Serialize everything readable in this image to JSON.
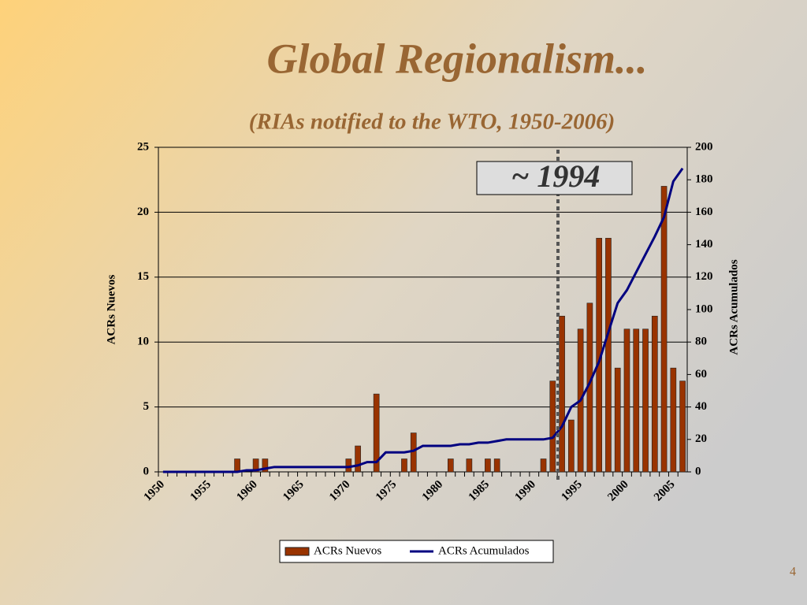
{
  "page_number": "4",
  "chart_data": {
    "type": "bar",
    "title": "Global Regionalism...",
    "subtitle": "(RIAs notified to the WTO, 1950-2006)",
    "y_label": "ACRs Nuevos",
    "y2_label": "ACRs Acumulados",
    "annotation": "~ 1994",
    "x": [
      1950,
      1951,
      1952,
      1953,
      1954,
      1955,
      1956,
      1957,
      1958,
      1959,
      1960,
      1961,
      1962,
      1963,
      1964,
      1965,
      1966,
      1967,
      1968,
      1969,
      1970,
      1971,
      1972,
      1973,
      1974,
      1975,
      1976,
      1977,
      1978,
      1979,
      1980,
      1981,
      1982,
      1983,
      1984,
      1985,
      1986,
      1987,
      1988,
      1989,
      1990,
      1991,
      1992,
      1993,
      1994,
      1995,
      1996,
      1997,
      1998,
      1999,
      2000,
      2001,
      2002,
      2003,
      2004,
      2005,
      2006
    ],
    "xlim": [
      1949.5,
      2006.5
    ],
    "xticks": [
      1950,
      1955,
      1960,
      1965,
      1970,
      1975,
      1980,
      1985,
      1990,
      1995,
      2000,
      2005
    ],
    "ylim": [
      0,
      25
    ],
    "yticks": [
      0,
      5,
      10,
      15,
      20,
      25
    ],
    "y2lim": [
      0,
      200
    ],
    "y2ticks": [
      0,
      20,
      40,
      60,
      80,
      100,
      120,
      140,
      160,
      180,
      200
    ],
    "grid": true,
    "legend": "bottom",
    "series": [
      {
        "name": "ACRs Nuevos",
        "type": "bar",
        "color": "#993300",
        "values": [
          0,
          0,
          0,
          0,
          0,
          0,
          0,
          0,
          1,
          0,
          1,
          1,
          0,
          0,
          0,
          0,
          0,
          0,
          0,
          0,
          1,
          2,
          0,
          6,
          0,
          0,
          1,
          3,
          0,
          0,
          0,
          1,
          0,
          1,
          0,
          1,
          1,
          0,
          0,
          0,
          0,
          1,
          7,
          12,
          4,
          11,
          13,
          18,
          18,
          8,
          11,
          11,
          11,
          12,
          22,
          8,
          7
        ]
      },
      {
        "name": "ACRs Acumulados",
        "type": "line",
        "axis": "y2",
        "color": "#000080",
        "values": [
          0,
          0,
          0,
          0,
          0,
          0,
          0,
          0,
          0,
          1,
          1,
          2,
          3,
          3,
          3,
          3,
          3,
          3,
          3,
          3,
          3,
          4,
          6,
          6,
          12,
          12,
          12,
          13,
          16,
          16,
          16,
          16,
          17,
          17,
          18,
          18,
          19,
          20,
          20,
          20,
          20,
          20,
          21,
          28,
          40,
          44,
          55,
          68,
          86,
          104,
          112,
          123,
          134,
          145,
          157,
          179,
          187
        ]
      }
    ]
  }
}
